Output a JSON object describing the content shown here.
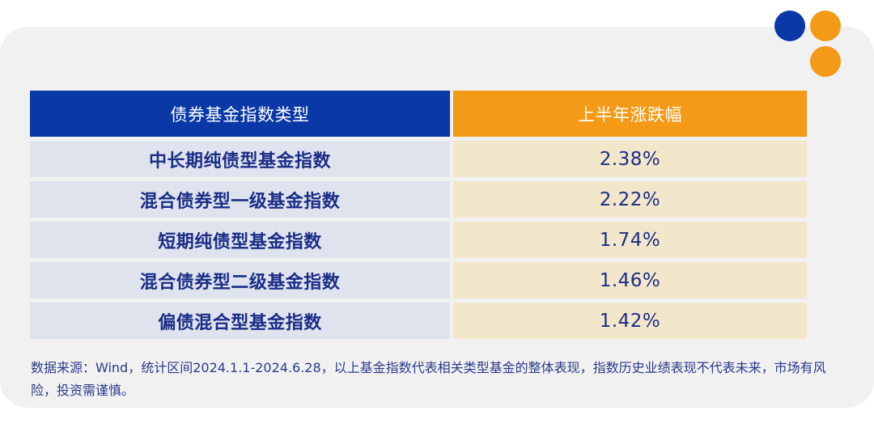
{
  "colors": {
    "primary_blue": "#0a38a7",
    "accent_orange": "#f39a16",
    "row_left_bg": "#dfe3ee",
    "row_right_bg": "#f2e6cb",
    "text_blue": "#1b2d87"
  },
  "decorations": {
    "dots": [
      "blue-dot",
      "orange-dot",
      "orange-dot"
    ]
  },
  "table": {
    "headers": [
      "债券基金指数类型",
      "上半年涨跌幅"
    ],
    "rows": [
      [
        "中长期纯债型基金指数",
        "2.38%"
      ],
      [
        "混合债券型一级基金指数",
        "2.22%"
      ],
      [
        "短期纯债型基金指数",
        "1.74%"
      ],
      [
        "混合债券型二级基金指数",
        "1.46%"
      ],
      [
        "偏债混合型基金指数",
        "1.42%"
      ]
    ]
  },
  "footnote": "数据来源：Wind，统计区间2024.1.1-2024.6.28，以上基金指数代表相关类型基金的整体表现，指数历史业绩表现不代表未来，市场有风险，投资需谨慎。"
}
